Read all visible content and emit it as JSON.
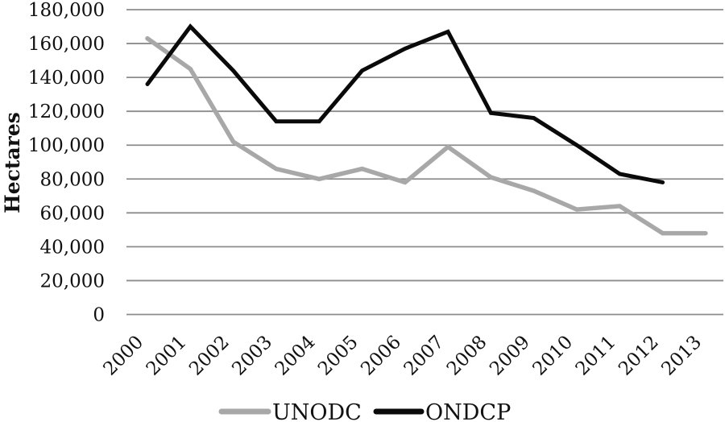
{
  "figure": {
    "background": "#ffffff",
    "grid_color": "#8c8c8c",
    "text_color": "#111111"
  },
  "chart_data": {
    "type": "line",
    "title": "",
    "xlabel": "",
    "ylabel": "Hectares",
    "categories": [
      "2000",
      "2001",
      "2002",
      "2003",
      "2004",
      "2005",
      "2006",
      "2007",
      "2008",
      "2009",
      "2010",
      "2011",
      "2012",
      "2013"
    ],
    "series": [
      {
        "name": "UNODC",
        "color": "#a8a8a8",
        "line_width": 5.5,
        "values": [
          163000,
          145000,
          102000,
          86000,
          80000,
          86000,
          78000,
          99000,
          81000,
          73000,
          62000,
          64000,
          48000,
          48000
        ]
      },
      {
        "name": "ONDCP",
        "color": "#0a0a0a",
        "line_width": 5,
        "values": [
          136000,
          170000,
          144000,
          114000,
          114000,
          144000,
          157000,
          167000,
          119000,
          116000,
          100000,
          83000,
          78000,
          null
        ]
      }
    ],
    "ylim": [
      0,
      180000
    ],
    "ytick_step": 20000,
    "ytick_labels": [
      "0",
      "20,000",
      "40,000",
      "60,000",
      "80,000",
      "100,000",
      "120,000",
      "140,000",
      "160,000",
      "180,000"
    ],
    "grid": "horizontal",
    "legend_position": "bottom-center"
  }
}
